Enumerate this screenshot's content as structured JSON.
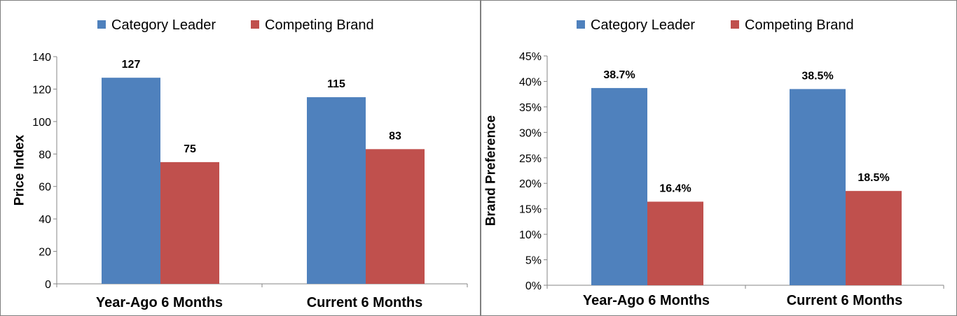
{
  "colors": {
    "series1": "#4f81bd",
    "series2": "#c0504d",
    "axis": "#868686"
  },
  "chart_data": [
    {
      "type": "bar",
      "categories": [
        "Year-Ago 6 Months",
        "Current 6 Months"
      ],
      "series": [
        {
          "name": "Category Leader",
          "values": [
            127,
            115
          ],
          "labels": [
            "127",
            "115"
          ]
        },
        {
          "name": "Competing Brand",
          "values": [
            75,
            83
          ],
          "labels": [
            "75",
            "83"
          ]
        }
      ],
      "ylabel": "Price Index",
      "ylim": [
        0,
        140
      ],
      "yticks": [
        0,
        20,
        40,
        60,
        80,
        100,
        120,
        140
      ],
      "ytick_labels": [
        "0",
        "20",
        "40",
        "60",
        "80",
        "100",
        "120",
        "140"
      ],
      "legend": "top",
      "grid": false
    },
    {
      "type": "bar",
      "categories": [
        "Year-Ago 6 Months",
        "Current 6 Months"
      ],
      "series": [
        {
          "name": "Category Leader",
          "values": [
            38.7,
            38.5
          ],
          "labels": [
            "38.7%",
            "38.5%"
          ]
        },
        {
          "name": "Competing Brand",
          "values": [
            16.4,
            18.5
          ],
          "labels": [
            "16.4%",
            "18.5%"
          ]
        }
      ],
      "ylabel": "Brand Preference",
      "ylim": [
        0,
        45
      ],
      "yticks": [
        0,
        5,
        10,
        15,
        20,
        25,
        30,
        35,
        40,
        45
      ],
      "ytick_labels": [
        "0%",
        "5%",
        "10%",
        "15%",
        "20%",
        "25%",
        "30%",
        "35%",
        "40%",
        "45%"
      ],
      "legend": "top",
      "grid": false
    }
  ]
}
